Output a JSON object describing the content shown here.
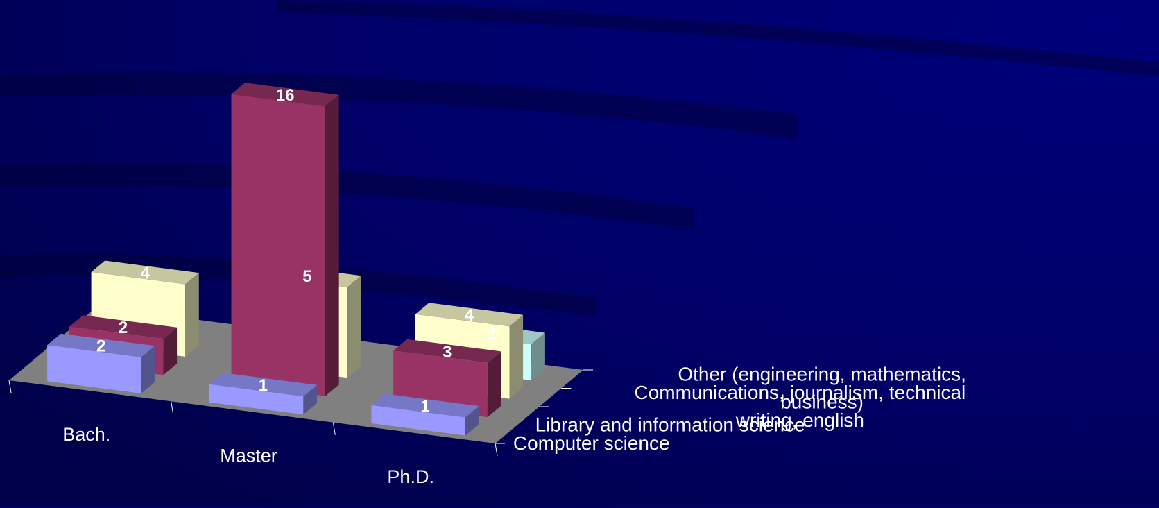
{
  "colors": {
    "background": "#000066",
    "floor": "#808080",
    "computer_science": "#9999ff",
    "library_science": "#993366",
    "communications": "#ffffcc",
    "other": "#ccffff"
  },
  "chart_data": {
    "type": "bar",
    "projection": "3d-grouped",
    "categories": [
      "Bach.",
      "Master",
      "Ph.D."
    ],
    "series": [
      {
        "name": "Computer science",
        "values": [
          2,
          1,
          1
        ],
        "color": "#9999ff"
      },
      {
        "name": "Library and information science",
        "values": [
          2,
          16,
          3
        ],
        "color": "#993366"
      },
      {
        "name": "Communications, journalism, technical writing, english",
        "values": [
          4,
          5,
          4
        ],
        "color": "#ffffcc"
      },
      {
        "name": "Other (engineering, mathematics, business)",
        "values": [
          null,
          null,
          2
        ],
        "color": "#ccffff"
      }
    ],
    "series_label_lines": [
      [
        "Computer science"
      ],
      [
        "Library and information science"
      ],
      [
        "Communications, journalism, technical",
        "writing, english"
      ],
      [
        "Other (engineering, mathematics,",
        "business)"
      ]
    ],
    "data_labels": true,
    "title": "",
    "xlabel": "",
    "ylabel": ""
  }
}
